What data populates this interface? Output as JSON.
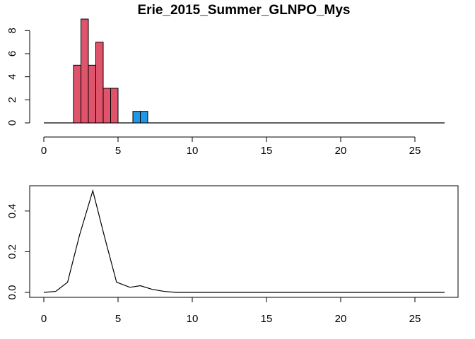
{
  "chart_data": [
    {
      "type": "bar",
      "title": "Erie_2015_Summer_GLNPO_Mys",
      "xlabel": "",
      "ylabel": "",
      "xlim": [
        0,
        27
      ],
      "ylim": [
        0,
        9
      ],
      "x_ticks": [
        "0",
        "5",
        "10",
        "15",
        "20",
        "25"
      ],
      "y_ticks": [
        "0",
        "2",
        "4",
        "6",
        "8"
      ],
      "grid": false,
      "series": [
        {
          "color": "#DF536B",
          "bars": [
            {
              "x0": 2.0,
              "x1": 2.5,
              "value": 5
            },
            {
              "x0": 2.5,
              "x1": 3.0,
              "value": 9
            },
            {
              "x0": 3.0,
              "x1": 3.5,
              "value": 5
            },
            {
              "x0": 3.5,
              "x1": 4.0,
              "value": 7
            },
            {
              "x0": 4.0,
              "x1": 4.5,
              "value": 3
            },
            {
              "x0": 4.5,
              "x1": 5.0,
              "value": 3
            }
          ]
        },
        {
          "color": "#2297E6",
          "bars": [
            {
              "x0": 6.0,
              "x1": 6.5,
              "value": 1
            },
            {
              "x0": 6.5,
              "x1": 7.0,
              "value": 1
            }
          ]
        }
      ]
    },
    {
      "type": "line",
      "title": "",
      "xlabel": "",
      "ylabel": "",
      "xlim": [
        0,
        27
      ],
      "ylim": [
        0,
        0.5
      ],
      "x_ticks": [
        "0",
        "5",
        "10",
        "15",
        "20",
        "25"
      ],
      "y_ticks": [
        "0.0",
        "0.2",
        "0.4"
      ],
      "grid": false,
      "series": [
        {
          "color": "#000000",
          "x": [
            0,
            0.8,
            1.6,
            2.4,
            3.3,
            4.1,
            4.9,
            5.8,
            6.5,
            7.3,
            8.1,
            8.9,
            9.8,
            12,
            15,
            18,
            21,
            24,
            27
          ],
          "y": [
            0.0,
            0.005,
            0.05,
            0.28,
            0.5,
            0.27,
            0.05,
            0.025,
            0.033,
            0.015,
            0.005,
            0.0,
            0.0,
            0.0,
            0.0,
            0.0,
            0.0,
            0.0,
            0.0
          ]
        }
      ]
    }
  ]
}
